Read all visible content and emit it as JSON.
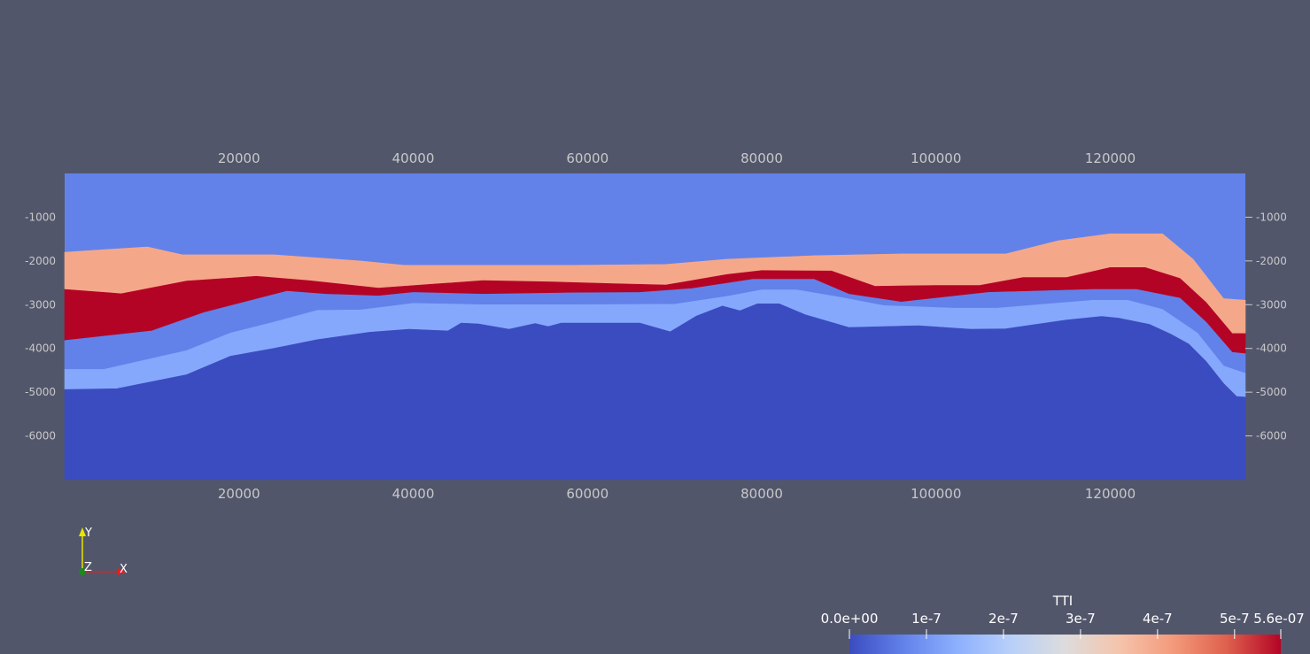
{
  "chart_data": {
    "type": "area",
    "title": "",
    "x_ticks": [
      20000,
      40000,
      60000,
      80000,
      100000,
      120000
    ],
    "x_tick_labels": [
      "20000",
      "40000",
      "60000",
      "80000",
      "100000",
      "120000"
    ],
    "y_ticks": [
      -1000,
      -2000,
      -3000,
      -4000,
      -5000,
      -6000
    ],
    "y_tick_labels": [
      "-1000",
      "-2000",
      "-3000",
      "-4000",
      "-5000",
      "-6000"
    ],
    "xlim": [
      0,
      135500
    ],
    "ylim": [
      -7000,
      0
    ],
    "layers": [
      {
        "color": "#f5a889",
        "top": [
          [
            0,
            -1800
          ],
          [
            9500,
            -1680
          ],
          [
            13500,
            -1860
          ],
          [
            24000,
            -1860
          ],
          [
            34000,
            -2000
          ],
          [
            39000,
            -2100
          ],
          [
            48000,
            -2100
          ],
          [
            58000,
            -2100
          ],
          [
            69000,
            -2080
          ],
          [
            76000,
            -1960
          ],
          [
            86000,
            -1880
          ],
          [
            96000,
            -1840
          ],
          [
            108000,
            -1840
          ],
          [
            114000,
            -1540
          ],
          [
            120000,
            -1380
          ],
          [
            126000,
            -1380
          ],
          [
            129500,
            -1960
          ],
          [
            133000,
            -2860
          ],
          [
            135500,
            -2900
          ]
        ],
        "bottom": [
          [
            0,
            -2650
          ],
          [
            6500,
            -2750
          ],
          [
            14000,
            -2460
          ],
          [
            22000,
            -2350
          ],
          [
            28000,
            -2450
          ],
          [
            36000,
            -2620
          ],
          [
            43000,
            -2520
          ],
          [
            48000,
            -2450
          ],
          [
            56000,
            -2480
          ],
          [
            63000,
            -2520
          ],
          [
            69000,
            -2550
          ],
          [
            76000,
            -2310
          ],
          [
            80000,
            -2220
          ],
          [
            88000,
            -2230
          ],
          [
            93000,
            -2580
          ],
          [
            100000,
            -2560
          ],
          [
            105000,
            -2560
          ],
          [
            110000,
            -2380
          ],
          [
            115000,
            -2380
          ],
          [
            120000,
            -2150
          ],
          [
            124000,
            -2150
          ],
          [
            128000,
            -2400
          ],
          [
            131000,
            -2950
          ],
          [
            134000,
            -3660
          ],
          [
            135500,
            -3660
          ]
        ]
      },
      {
        "color": "#b40426",
        "top": [
          [
            0,
            -2650
          ],
          [
            6500,
            -2750
          ],
          [
            14000,
            -2460
          ],
          [
            22000,
            -2350
          ],
          [
            28000,
            -2450
          ],
          [
            36000,
            -2620
          ],
          [
            43000,
            -2520
          ],
          [
            48000,
            -2450
          ],
          [
            56000,
            -2480
          ],
          [
            63000,
            -2520
          ],
          [
            69000,
            -2550
          ],
          [
            76000,
            -2310
          ],
          [
            80000,
            -2220
          ],
          [
            88000,
            -2230
          ],
          [
            93000,
            -2580
          ],
          [
            100000,
            -2560
          ],
          [
            105000,
            -2560
          ],
          [
            110000,
            -2380
          ],
          [
            115000,
            -2380
          ],
          [
            120000,
            -2150
          ],
          [
            124000,
            -2150
          ],
          [
            128000,
            -2400
          ],
          [
            131000,
            -2950
          ],
          [
            134000,
            -3660
          ],
          [
            135500,
            -3660
          ]
        ],
        "bottom": [
          [
            0,
            -3820
          ],
          [
            10000,
            -3600
          ],
          [
            16000,
            -3180
          ],
          [
            25500,
            -2690
          ],
          [
            30000,
            -2760
          ],
          [
            36000,
            -2800
          ],
          [
            40000,
            -2720
          ],
          [
            48000,
            -2760
          ],
          [
            58000,
            -2730
          ],
          [
            66000,
            -2720
          ],
          [
            72000,
            -2630
          ],
          [
            79000,
            -2420
          ],
          [
            86000,
            -2420
          ],
          [
            90000,
            -2760
          ],
          [
            96000,
            -2940
          ],
          [
            106000,
            -2720
          ],
          [
            118000,
            -2650
          ],
          [
            123000,
            -2650
          ],
          [
            128000,
            -2850
          ],
          [
            131000,
            -3400
          ],
          [
            134000,
            -4090
          ],
          [
            135500,
            -4120
          ]
        ]
      },
      {
        "color": "#6282ea",
        "top": [
          [
            0,
            -3820
          ],
          [
            10000,
            -3600
          ],
          [
            16000,
            -3180
          ],
          [
            25500,
            -2690
          ],
          [
            30000,
            -2760
          ],
          [
            36000,
            -2800
          ],
          [
            40000,
            -2720
          ],
          [
            48000,
            -2760
          ],
          [
            58000,
            -2730
          ],
          [
            66000,
            -2720
          ],
          [
            72000,
            -2630
          ],
          [
            79000,
            -2420
          ],
          [
            86000,
            -2420
          ],
          [
            90000,
            -2760
          ],
          [
            96000,
            -2940
          ],
          [
            106000,
            -2720
          ],
          [
            118000,
            -2650
          ],
          [
            123000,
            -2650
          ],
          [
            128000,
            -2850
          ],
          [
            131000,
            -3400
          ],
          [
            134000,
            -4090
          ],
          [
            135500,
            -4120
          ]
        ],
        "bottom": [
          [
            0,
            -4480
          ],
          [
            4500,
            -4480
          ],
          [
            14000,
            -4050
          ],
          [
            19000,
            -3650
          ],
          [
            24000,
            -3400
          ],
          [
            29000,
            -3130
          ],
          [
            34000,
            -3120
          ],
          [
            40000,
            -2970
          ],
          [
            48000,
            -3000
          ],
          [
            58000,
            -3000
          ],
          [
            70000,
            -2990
          ],
          [
            76000,
            -2810
          ],
          [
            80000,
            -2660
          ],
          [
            84000,
            -2660
          ],
          [
            89000,
            -2830
          ],
          [
            94000,
            -3020
          ],
          [
            102000,
            -3080
          ],
          [
            107000,
            -3080
          ],
          [
            113000,
            -2980
          ],
          [
            118000,
            -2900
          ],
          [
            122000,
            -2900
          ],
          [
            126000,
            -3110
          ],
          [
            130000,
            -3650
          ],
          [
            133000,
            -4400
          ],
          [
            135500,
            -4570
          ]
        ]
      },
      {
        "color": "#85a8fc",
        "top": [
          [
            0,
            -4480
          ],
          [
            4500,
            -4480
          ],
          [
            14000,
            -4050
          ],
          [
            19000,
            -3650
          ],
          [
            24000,
            -3400
          ],
          [
            29000,
            -3130
          ],
          [
            34000,
            -3120
          ],
          [
            40000,
            -2970
          ],
          [
            48000,
            -3000
          ],
          [
            58000,
            -3000
          ],
          [
            70000,
            -2990
          ],
          [
            76000,
            -2810
          ],
          [
            80000,
            -2660
          ],
          [
            84000,
            -2660
          ],
          [
            89000,
            -2830
          ],
          [
            94000,
            -3020
          ],
          [
            102000,
            -3080
          ],
          [
            107000,
            -3080
          ],
          [
            113000,
            -2980
          ],
          [
            118000,
            -2900
          ],
          [
            122000,
            -2900
          ],
          [
            126000,
            -3110
          ],
          [
            130000,
            -3650
          ],
          [
            133000,
            -4400
          ],
          [
            135500,
            -4570
          ]
        ],
        "bottom": [
          [
            0,
            -4940
          ],
          [
            6000,
            -4920
          ],
          [
            14000,
            -4600
          ],
          [
            19000,
            -4180
          ],
          [
            24000,
            -4000
          ],
          [
            29000,
            -3800
          ],
          [
            35000,
            -3630
          ],
          [
            39500,
            -3560
          ],
          [
            44000,
            -3600
          ],
          [
            45500,
            -3420
          ],
          [
            47500,
            -3440
          ],
          [
            51000,
            -3560
          ],
          [
            54000,
            -3430
          ],
          [
            55500,
            -3500
          ],
          [
            57000,
            -3420
          ],
          [
            66000,
            -3420
          ],
          [
            69500,
            -3620
          ],
          [
            72500,
            -3260
          ],
          [
            75500,
            -3030
          ],
          [
            77500,
            -3140
          ],
          [
            79500,
            -2980
          ],
          [
            82000,
            -2980
          ],
          [
            85000,
            -3230
          ],
          [
            90000,
            -3520
          ],
          [
            98000,
            -3480
          ],
          [
            104000,
            -3560
          ],
          [
            108000,
            -3550
          ],
          [
            115000,
            -3350
          ],
          [
            119000,
            -3270
          ],
          [
            121000,
            -3310
          ],
          [
            124500,
            -3450
          ],
          [
            127000,
            -3680
          ],
          [
            129000,
            -3900
          ],
          [
            131000,
            -4300
          ],
          [
            133000,
            -4800
          ],
          [
            134500,
            -5100
          ],
          [
            135500,
            -5110
          ]
        ]
      },
      {
        "color": "#3b4cc0",
        "top": [
          [
            0,
            -4940
          ],
          [
            6000,
            -4920
          ],
          [
            14000,
            -4600
          ],
          [
            19000,
            -4180
          ],
          [
            24000,
            -4000
          ],
          [
            29000,
            -3800
          ],
          [
            35000,
            -3630
          ],
          [
            39500,
            -3560
          ],
          [
            44000,
            -3600
          ],
          [
            45500,
            -3420
          ],
          [
            47500,
            -3440
          ],
          [
            51000,
            -3560
          ],
          [
            54000,
            -3430
          ],
          [
            55500,
            -3500
          ],
          [
            57000,
            -3420
          ],
          [
            66000,
            -3420
          ],
          [
            69500,
            -3620
          ],
          [
            72500,
            -3260
          ],
          [
            75500,
            -3030
          ],
          [
            77500,
            -3140
          ],
          [
            79500,
            -2980
          ],
          [
            82000,
            -2980
          ],
          [
            85000,
            -3230
          ],
          [
            90000,
            -3520
          ],
          [
            98000,
            -3480
          ],
          [
            104000,
            -3560
          ],
          [
            108000,
            -3550
          ],
          [
            115000,
            -3350
          ],
          [
            119000,
            -3270
          ],
          [
            121000,
            -3310
          ],
          [
            124500,
            -3450
          ],
          [
            127000,
            -3680
          ],
          [
            129000,
            -3900
          ],
          [
            131000,
            -4300
          ],
          [
            133000,
            -4800
          ],
          [
            134500,
            -5100
          ],
          [
            135500,
            -5110
          ]
        ],
        "bottom": [
          [
            0,
            -7000
          ],
          [
            135500,
            -7000
          ]
        ]
      }
    ],
    "background_layer_color": "#6282ea",
    "colorbar": {
      "title": "TTI",
      "min": 0,
      "max": 5.6e-07,
      "tick_values": [
        0,
        1e-07,
        2e-07,
        3e-07,
        4e-07,
        5e-07,
        5.6e-07
      ],
      "tick_labels": [
        "0.0e+00",
        "1e-7",
        "2e-7",
        "3e-7",
        "4e-7",
        "5e-7",
        "5.6e-07"
      ],
      "colors": [
        "#3b4cc0",
        "#6282ea",
        "#8db0fe",
        "#b8d0f9",
        "#dddcdc",
        "#f5c4ac",
        "#f49a7b",
        "#de604d",
        "#b40426"
      ]
    }
  },
  "orientation_axes": {
    "y_label": "Y",
    "x_label": "X",
    "z_label": "Z",
    "x_color": "#e02020",
    "y_color": "#e6e600",
    "z_color": "#1a8a1a"
  }
}
